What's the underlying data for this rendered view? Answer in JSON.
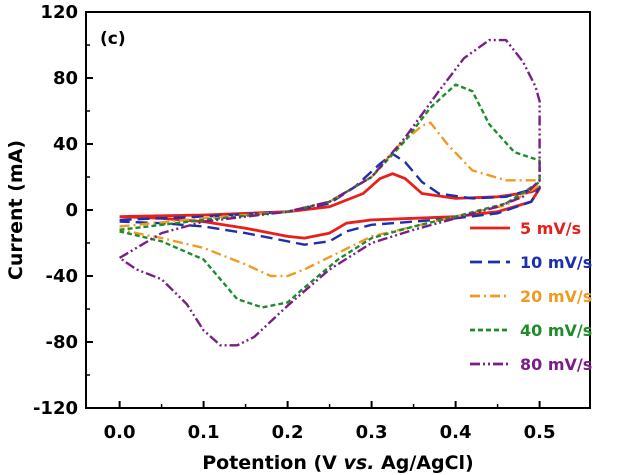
{
  "chart_data": {
    "type": "line",
    "panel_label": "(c)",
    "xlabel_parts": [
      "Potention (V ",
      "vs.",
      " Ag/AgCl)"
    ],
    "ylabel": "Current (mA)",
    "xlim": [
      -0.04,
      0.56
    ],
    "ylim": [
      -120,
      120
    ],
    "x_ticks": [
      0.0,
      0.1,
      0.2,
      0.3,
      0.4,
      0.5
    ],
    "x_tick_labels": [
      "0.0",
      "0.1",
      "0.2",
      "0.3",
      "0.4",
      "0.5"
    ],
    "y_ticks": [
      -120,
      -80,
      -40,
      0,
      40,
      80,
      120
    ],
    "y_tick_labels": [
      "-120",
      "-80",
      "-40",
      "0",
      "40",
      "80",
      "120"
    ],
    "grid": false,
    "legend_position": "bottom-right",
    "series": [
      {
        "name": "5 mV/s",
        "color": "#e8201c",
        "dash": "solid",
        "points": [
          [
            0.0,
            -4
          ],
          [
            0.1,
            -3
          ],
          [
            0.2,
            -1
          ],
          [
            0.25,
            2
          ],
          [
            0.29,
            10
          ],
          [
            0.31,
            19
          ],
          [
            0.325,
            22
          ],
          [
            0.34,
            19
          ],
          [
            0.36,
            10
          ],
          [
            0.4,
            7
          ],
          [
            0.45,
            8
          ],
          [
            0.49,
            11
          ],
          [
            0.5,
            13
          ],
          [
            0.49,
            5
          ],
          [
            0.45,
            -1
          ],
          [
            0.4,
            -4
          ],
          [
            0.35,
            -5
          ],
          [
            0.3,
            -6
          ],
          [
            0.27,
            -8
          ],
          [
            0.25,
            -14
          ],
          [
            0.22,
            -17
          ],
          [
            0.2,
            -16
          ],
          [
            0.15,
            -11
          ],
          [
            0.1,
            -7
          ],
          [
            0.05,
            -5
          ],
          [
            0.0,
            -4
          ]
        ]
      },
      {
        "name": "10 mV/s",
        "color": "#1c2fae",
        "dash": "long-dash",
        "points": [
          [
            0.0,
            -6
          ],
          [
            0.1,
            -4
          ],
          [
            0.2,
            -1
          ],
          [
            0.25,
            4
          ],
          [
            0.28,
            14
          ],
          [
            0.31,
            28
          ],
          [
            0.325,
            34
          ],
          [
            0.34,
            29
          ],
          [
            0.36,
            17
          ],
          [
            0.38,
            10
          ],
          [
            0.42,
            7
          ],
          [
            0.46,
            8
          ],
          [
            0.5,
            14
          ],
          [
            0.49,
            5
          ],
          [
            0.45,
            -2
          ],
          [
            0.4,
            -5
          ],
          [
            0.35,
            -7
          ],
          [
            0.3,
            -9
          ],
          [
            0.27,
            -13
          ],
          [
            0.25,
            -19
          ],
          [
            0.22,
            -21
          ],
          [
            0.2,
            -19
          ],
          [
            0.15,
            -14
          ],
          [
            0.1,
            -10
          ],
          [
            0.05,
            -8
          ],
          [
            0.0,
            -7
          ]
        ]
      },
      {
        "name": "20 mV/s",
        "color": "#f09a22",
        "dash": "dash-dot",
        "points": [
          [
            0.0,
            -10
          ],
          [
            0.1,
            -5
          ],
          [
            0.2,
            -1
          ],
          [
            0.25,
            5
          ],
          [
            0.3,
            20
          ],
          [
            0.33,
            38
          ],
          [
            0.36,
            51
          ],
          [
            0.37,
            53
          ],
          [
            0.39,
            40
          ],
          [
            0.42,
            24
          ],
          [
            0.46,
            18
          ],
          [
            0.5,
            18
          ],
          [
            0.5,
            15
          ],
          [
            0.46,
            3
          ],
          [
            0.4,
            -4
          ],
          [
            0.35,
            -10
          ],
          [
            0.3,
            -16
          ],
          [
            0.26,
            -26
          ],
          [
            0.22,
            -36
          ],
          [
            0.2,
            -40
          ],
          [
            0.18,
            -40
          ],
          [
            0.15,
            -33
          ],
          [
            0.1,
            -23
          ],
          [
            0.05,
            -17
          ],
          [
            0.0,
            -12
          ]
        ]
      },
      {
        "name": "40 mV/s",
        "color": "#1e8c2a",
        "dash": "short-dash",
        "points": [
          [
            0.0,
            -12
          ],
          [
            0.1,
            -6
          ],
          [
            0.2,
            -1
          ],
          [
            0.25,
            5
          ],
          [
            0.3,
            20
          ],
          [
            0.34,
            42
          ],
          [
            0.37,
            62
          ],
          [
            0.4,
            76
          ],
          [
            0.42,
            72
          ],
          [
            0.44,
            52
          ],
          [
            0.47,
            35
          ],
          [
            0.5,
            30
          ],
          [
            0.5,
            17
          ],
          [
            0.46,
            4
          ],
          [
            0.4,
            -4
          ],
          [
            0.35,
            -10
          ],
          [
            0.3,
            -17
          ],
          [
            0.26,
            -30
          ],
          [
            0.22,
            -47
          ],
          [
            0.2,
            -56
          ],
          [
            0.17,
            -59
          ],
          [
            0.14,
            -54
          ],
          [
            0.12,
            -42
          ],
          [
            0.1,
            -30
          ],
          [
            0.05,
            -19
          ],
          [
            0.0,
            -13
          ]
        ]
      },
      {
        "name": "80 mV/s",
        "color": "#7b1d86",
        "dash": "dash-dot-dot",
        "points": [
          [
            0.0,
            -29
          ],
          [
            0.05,
            -14
          ],
          [
            0.1,
            -7
          ],
          [
            0.2,
            -1
          ],
          [
            0.25,
            5
          ],
          [
            0.3,
            20
          ],
          [
            0.34,
            44
          ],
          [
            0.38,
            72
          ],
          [
            0.41,
            92
          ],
          [
            0.44,
            103
          ],
          [
            0.46,
            103
          ],
          [
            0.48,
            90
          ],
          [
            0.495,
            75
          ],
          [
            0.5,
            66
          ],
          [
            0.5,
            18
          ],
          [
            0.48,
            8
          ],
          [
            0.45,
            2
          ],
          [
            0.4,
            -5
          ],
          [
            0.35,
            -12
          ],
          [
            0.3,
            -20
          ],
          [
            0.25,
            -36
          ],
          [
            0.2,
            -58
          ],
          [
            0.16,
            -77
          ],
          [
            0.14,
            -82
          ],
          [
            0.12,
            -82
          ],
          [
            0.1,
            -73
          ],
          [
            0.08,
            -57
          ],
          [
            0.05,
            -42
          ],
          [
            0.02,
            -36
          ],
          [
            0.0,
            -29
          ]
        ]
      }
    ]
  }
}
